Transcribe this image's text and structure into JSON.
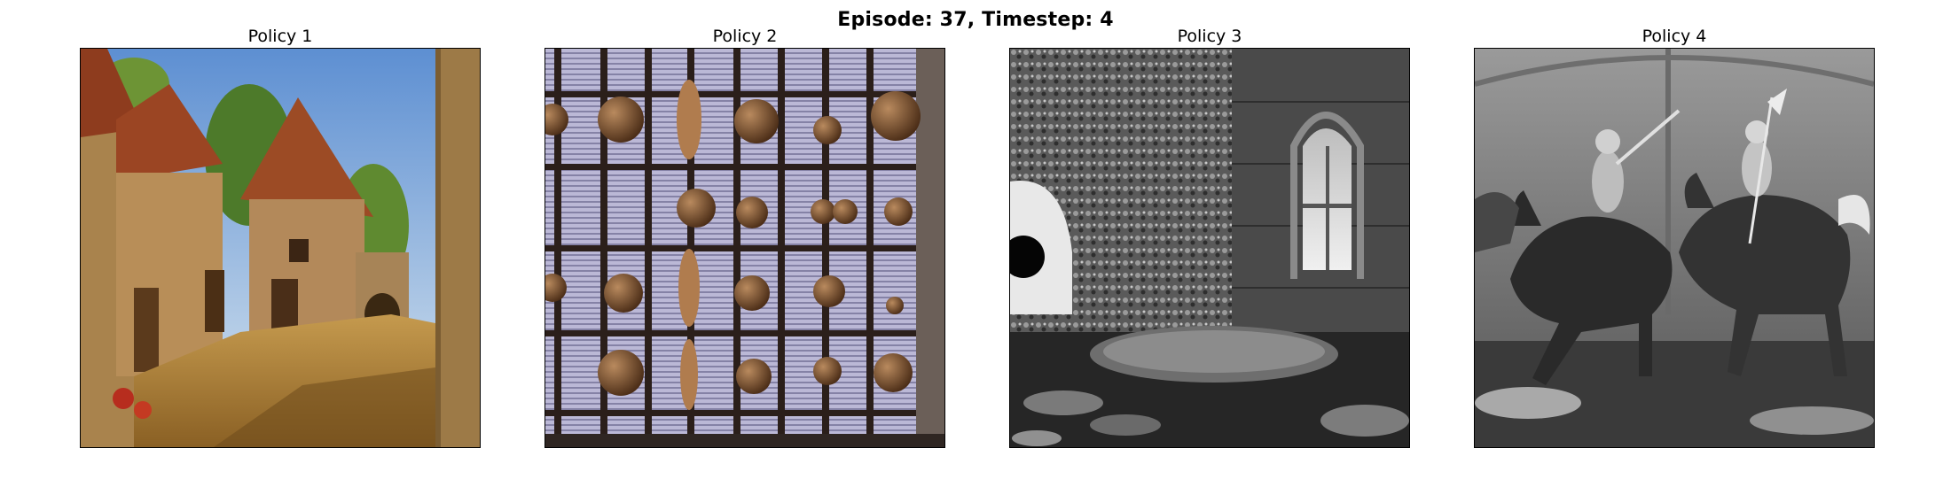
{
  "figure": {
    "suptitle": "Episode: 37, Timestep: 4"
  },
  "panels": [
    {
      "title": "Policy 1",
      "image_icon": "village-street-painting"
    },
    {
      "title": "Policy 2",
      "image_icon": "window-grid-with-spheres"
    },
    {
      "title": "Policy 3",
      "image_icon": "grayscale-stone-interior"
    },
    {
      "title": "Policy 4",
      "image_icon": "grayscale-knights-on-horses"
    }
  ]
}
